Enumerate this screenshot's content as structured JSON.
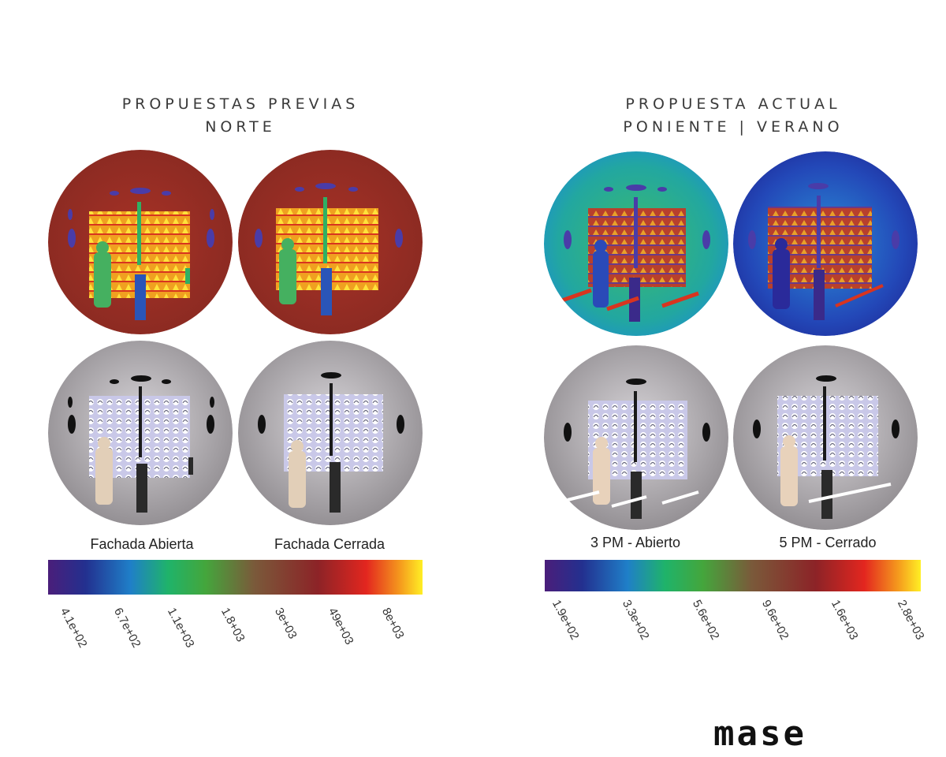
{
  "left_panel": {
    "title_line1": "PROPUESTAS PREVIAS",
    "title_line2": "NORTE",
    "captions": [
      "Fachada Abierta",
      "Fachada Cerrada"
    ],
    "scale_ticks": [
      "4.1e+02",
      "6.7e+02",
      "1.1e+03",
      "1.8+03",
      "3e+03",
      "49e+03",
      "8e+03"
    ]
  },
  "right_panel": {
    "title_line1": "PROPUESTA ACTUAL",
    "title_line2": "PONIENTE | VERANO",
    "captions": [
      "3 PM - Abierto",
      "5 PM - Cerrado"
    ],
    "scale_ticks": [
      "1.9e+02",
      "3.3e+02",
      "5.6e+02",
      "9.6e+02",
      "1.6e+03",
      "2.8e+03"
    ]
  },
  "brand": "mase",
  "colors": {
    "heat_red": "#9c2a22",
    "heat_blue": "#1f3fa8",
    "heat_green": "#2fb064",
    "render_gray": "#b9b2b6"
  }
}
